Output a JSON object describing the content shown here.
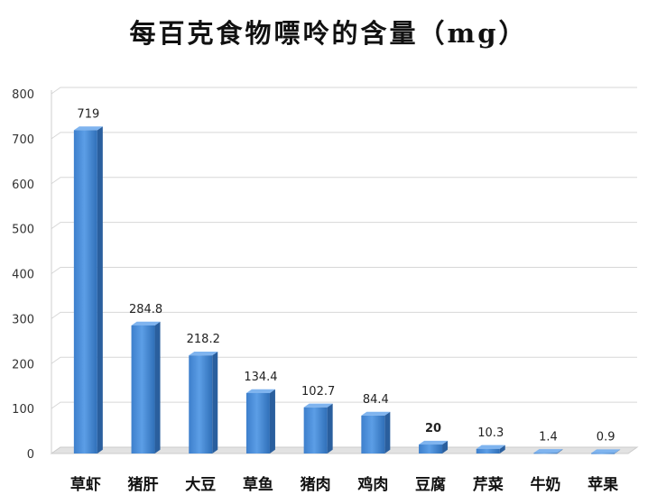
{
  "chart_data": {
    "type": "bar",
    "title": "每百克食物嘌呤的含量（mg）",
    "categories": [
      "草虾",
      "猪肝",
      "大豆",
      "草鱼",
      "猪肉",
      "鸡肉",
      "豆腐",
      "芹菜",
      "牛奶",
      "苹果"
    ],
    "values": [
      719,
      284.8,
      218.2,
      134.4,
      102.7,
      84.4,
      20,
      10.3,
      1.4,
      0.9
    ],
    "value_labels": [
      "719",
      "284.8",
      "218.2",
      "134.4",
      "102.7",
      "84.4",
      "20",
      "10.3",
      "1.4",
      "0.9"
    ],
    "highlight_index": 6,
    "highlight_color": "#cc2222",
    "bar_color": "#4a8fd8",
    "ylim": [
      0,
      800
    ],
    "yticks": [
      "0",
      "100",
      "200",
      "300",
      "400",
      "500",
      "600",
      "700",
      "800"
    ],
    "grid": true,
    "xlabel": "",
    "ylabel": ""
  }
}
